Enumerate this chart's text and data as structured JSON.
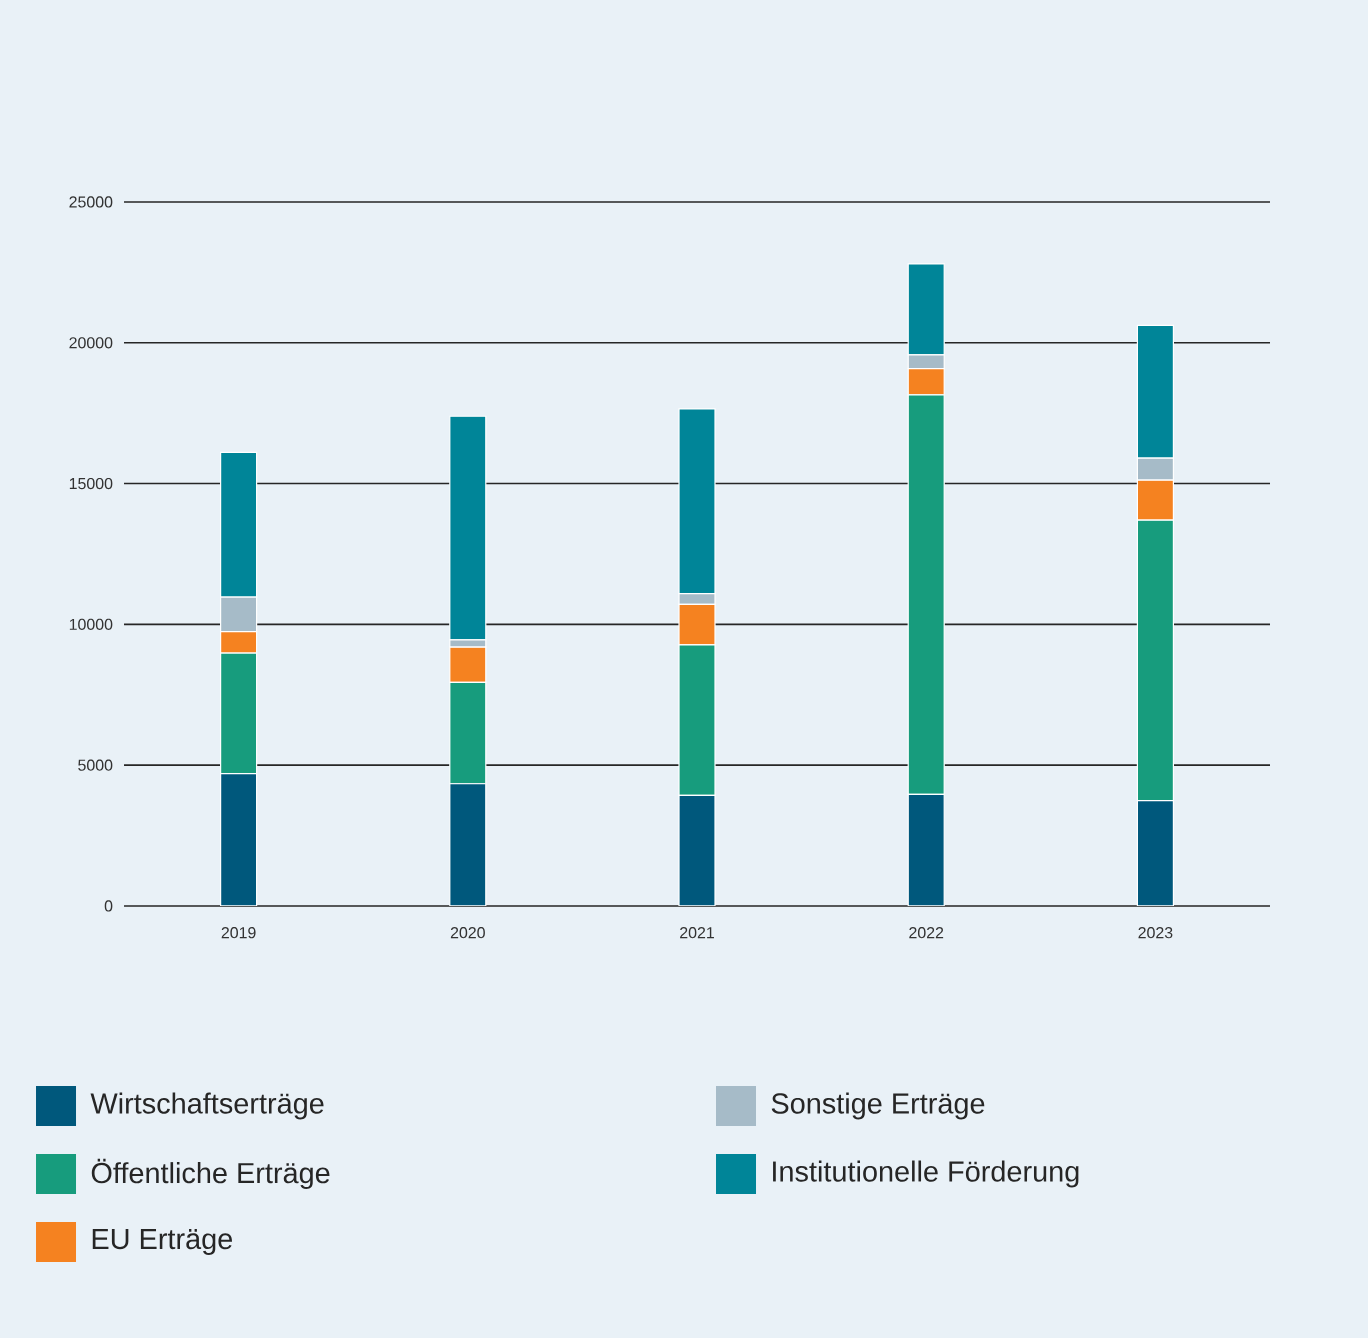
{
  "chart_data": {
    "type": "bar",
    "stacked": true,
    "categories": [
      "2019",
      "2020",
      "2021",
      "2022",
      "2023"
    ],
    "series": [
      {
        "name": "Wirtschaftserträge",
        "color": "#00587c",
        "values": [
          4700,
          4340,
          3930,
          3960,
          3740
        ]
      },
      {
        "name": "Öffentliche Erträge",
        "color": "#179c7d",
        "values": [
          4280,
          3600,
          5340,
          14190,
          9960
        ]
      },
      {
        "name": "EU Erträge",
        "color": "#f58220",
        "values": [
          760,
          1250,
          1440,
          930,
          1420
        ]
      },
      {
        "name": "Sonstige Erträge",
        "color": "#a6bbc8",
        "values": [
          1230,
          260,
          380,
          490,
          780
        ]
      },
      {
        "name": "Institutionelle Förderung",
        "color": "#008598",
        "values": [
          5140,
          7940,
          6560,
          3230,
          4720
        ]
      }
    ],
    "ylim": [
      0,
      25000
    ],
    "yticks": [
      0,
      5000,
      10000,
      15000,
      20000,
      25000
    ],
    "grid": "y",
    "legend": "bottom"
  }
}
